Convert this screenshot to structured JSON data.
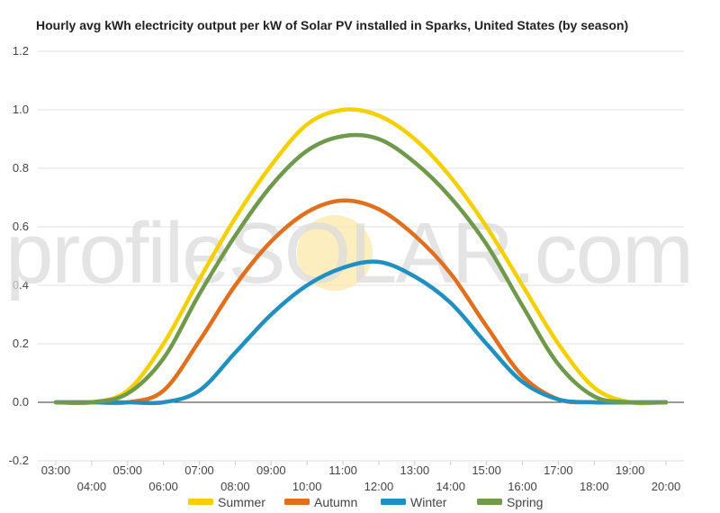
{
  "chart_data": {
    "type": "line",
    "title": "Hourly avg kWh electricity output per kW of Solar PV installed in Sparks, United States (by season)",
    "xlabel": "",
    "ylabel": "",
    "ylim": [
      -0.2,
      1.2
    ],
    "yticks": [
      "-0.2",
      "0.0",
      "0.2",
      "0.4",
      "0.6",
      "0.8",
      "1.0",
      "1.2"
    ],
    "categories": [
      "03:00",
      "04:00",
      "05:00",
      "06:00",
      "07:00",
      "08:00",
      "09:00",
      "10:00",
      "11:00",
      "12:00",
      "13:00",
      "14:00",
      "15:00",
      "16:00",
      "17:00",
      "18:00",
      "19:00",
      "20:00"
    ],
    "grid": true,
    "legend_position": "bottom",
    "series": [
      {
        "name": "Summer",
        "color": "#f5d000",
        "values": [
          0.0,
          0.0,
          0.04,
          0.2,
          0.42,
          0.63,
          0.81,
          0.95,
          1.0,
          0.98,
          0.9,
          0.77,
          0.6,
          0.4,
          0.2,
          0.05,
          0.0,
          0.0
        ]
      },
      {
        "name": "Autumn",
        "color": "#e07020",
        "values": [
          0.0,
          0.0,
          0.0,
          0.04,
          0.21,
          0.4,
          0.55,
          0.65,
          0.69,
          0.66,
          0.57,
          0.44,
          0.26,
          0.09,
          0.01,
          0.0,
          0.0,
          0.0
        ]
      },
      {
        "name": "Winter",
        "color": "#2090c0",
        "values": [
          0.0,
          0.0,
          0.0,
          0.0,
          0.04,
          0.17,
          0.3,
          0.4,
          0.46,
          0.48,
          0.43,
          0.34,
          0.2,
          0.07,
          0.01,
          0.0,
          0.0,
          0.0
        ]
      },
      {
        "name": "Spring",
        "color": "#6f9a4b",
        "values": [
          0.0,
          0.0,
          0.03,
          0.15,
          0.37,
          0.57,
          0.74,
          0.86,
          0.91,
          0.9,
          0.82,
          0.7,
          0.54,
          0.33,
          0.13,
          0.02,
          0.0,
          0.0
        ]
      }
    ]
  },
  "watermark": "profileSOLAR.com"
}
